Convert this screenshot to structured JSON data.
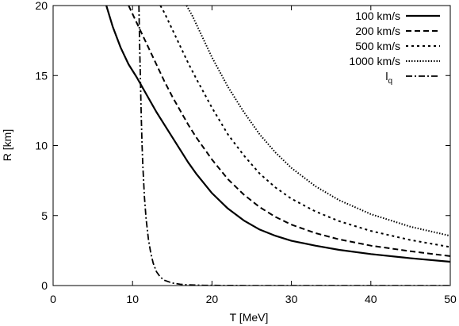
{
  "chart_data": {
    "type": "line",
    "xlabel": "T [MeV]",
    "ylabel": "R [km]",
    "xlim": [
      0,
      50
    ],
    "ylim": [
      0,
      20
    ],
    "x_ticks": [
      "0",
      "10",
      "20",
      "30",
      "40",
      "50"
    ],
    "y_ticks": [
      "0",
      "5",
      "10",
      "15",
      "20"
    ],
    "grid": false,
    "legend_position": "top-right",
    "series": [
      {
        "name": "100 km/s",
        "style": "solid",
        "x": [
          6.7,
          7.5,
          8.5,
          9.5,
          10.5,
          11.0,
          12.0,
          13.0,
          14.0,
          15.0,
          16.0,
          17.0,
          18.0,
          19.0,
          20.0,
          22.0,
          24.0,
          26.0,
          28.0,
          30.0,
          33.0,
          36.0,
          40.0,
          45.0,
          50.0
        ],
        "values": [
          20.0,
          18.5,
          17.0,
          15.8,
          14.9,
          14.4,
          13.4,
          12.4,
          11.5,
          10.6,
          9.7,
          8.8,
          8.0,
          7.3,
          6.6,
          5.5,
          4.65,
          4.0,
          3.55,
          3.2,
          2.85,
          2.55,
          2.25,
          1.95,
          1.7
        ]
      },
      {
        "name": "200 km/s",
        "style": "dashed",
        "x": [
          9.5,
          10.0,
          11.0,
          12.0,
          13.0,
          14.0,
          15.0,
          16.0,
          17.0,
          18.0,
          20.0,
          22.0,
          24.0,
          26.0,
          28.0,
          30.0,
          33.0,
          36.0,
          40.0,
          45.0,
          50.0
        ],
        "values": [
          20.0,
          19.4,
          18.2,
          17.0,
          15.8,
          14.6,
          13.5,
          12.5,
          11.5,
          10.6,
          9.0,
          7.6,
          6.5,
          5.6,
          4.9,
          4.35,
          3.75,
          3.3,
          2.85,
          2.45,
          2.1
        ]
      },
      {
        "name": "500 km/s",
        "style": "dotted",
        "x": [
          13.5,
          14.0,
          15.0,
          16.0,
          17.0,
          18.0,
          20.0,
          22.0,
          24.0,
          26.0,
          28.0,
          30.0,
          33.0,
          36.0,
          40.0,
          45.0,
          50.0
        ],
        "values": [
          20.0,
          19.5,
          18.3,
          17.1,
          15.9,
          14.8,
          12.7,
          10.8,
          9.3,
          8.0,
          7.0,
          6.2,
          5.3,
          4.6,
          3.9,
          3.25,
          2.75
        ]
      },
      {
        "name": "1000 km/s",
        "style": "fine-dotted",
        "x": [
          16.8,
          17.5,
          18.0,
          19.0,
          20.0,
          22.0,
          24.0,
          26.0,
          28.0,
          30.0,
          33.0,
          36.0,
          40.0,
          45.0,
          50.0
        ],
        "values": [
          20.0,
          19.3,
          18.7,
          17.5,
          16.3,
          14.2,
          12.4,
          10.8,
          9.5,
          8.4,
          7.1,
          6.1,
          5.1,
          4.2,
          3.55
        ]
      },
      {
        "name": "l_q",
        "style": "dash-dot",
        "x": [
          10.8,
          10.85,
          10.9,
          11.0,
          11.1,
          11.2,
          11.3,
          11.5,
          11.7,
          12.0,
          12.3,
          12.6,
          13.0,
          13.5,
          14.0,
          15.0,
          16.0,
          17.0,
          18.0,
          19.0,
          20.0,
          22.0,
          25.0,
          30.0,
          40.0,
          50.0
        ],
        "values": [
          20.0,
          18.5,
          17.0,
          14.5,
          12.0,
          10.0,
          8.5,
          6.3,
          4.8,
          3.3,
          2.3,
          1.6,
          1.0,
          0.6,
          0.38,
          0.18,
          0.09,
          0.05,
          0.03,
          0.015,
          0.01,
          0.005,
          0.0,
          0.0,
          0.0,
          0.0
        ]
      }
    ]
  },
  "legend": [
    {
      "label": "100 km/s"
    },
    {
      "label": "200 km/s"
    },
    {
      "label": "500 km/s"
    },
    {
      "label": "1000 km/s"
    },
    {
      "label_main": "l",
      "label_sub": "q"
    }
  ]
}
